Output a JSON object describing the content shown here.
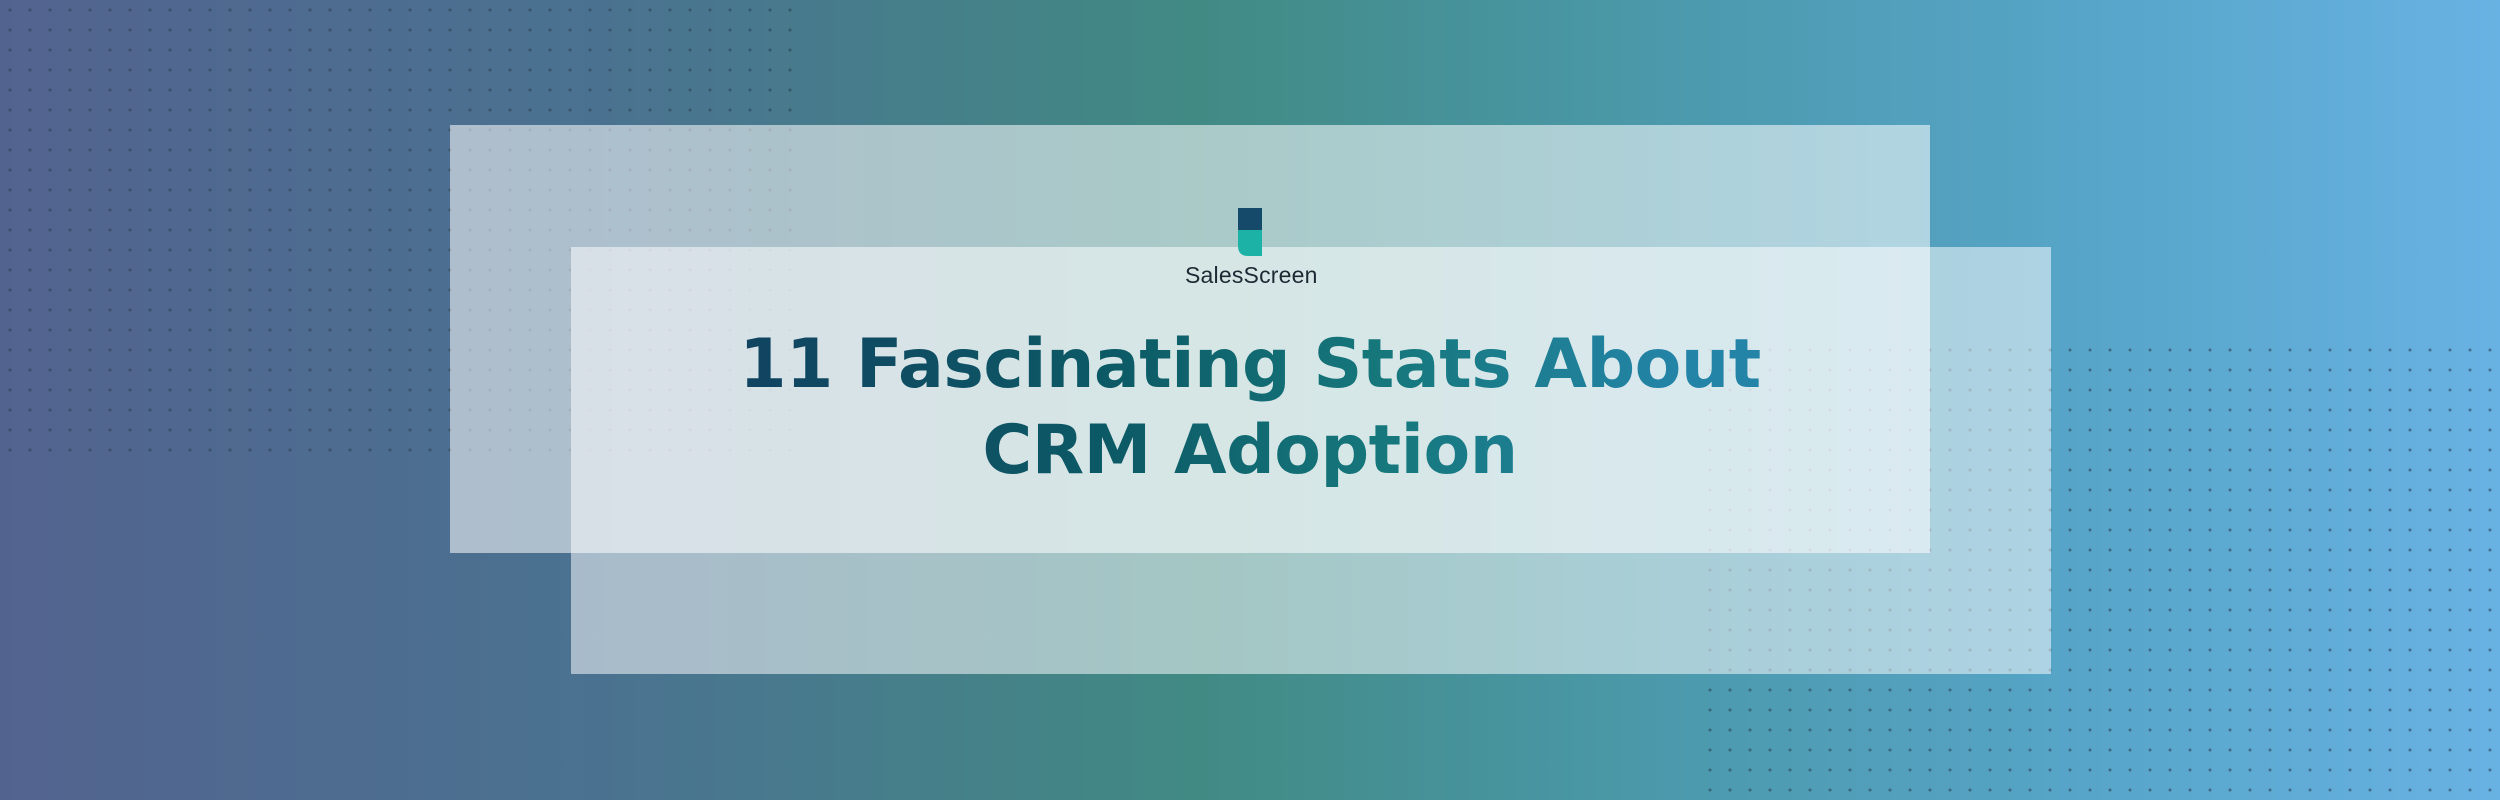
{
  "brand": {
    "name": "SalesScreen",
    "logo_icon": "salesscreen-s-logo-icon",
    "colors": {
      "logo_dark": "#154a6a",
      "logo_teal": "#1cb3a6",
      "title_dark": "#13395e",
      "title_teal": "#16787c",
      "title_blue": "#2484a8"
    }
  },
  "headline": {
    "line1": "11 Fascinating Stats About",
    "line2": "CRM Adoption"
  }
}
